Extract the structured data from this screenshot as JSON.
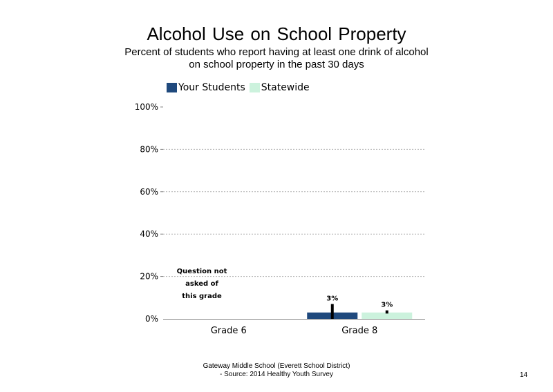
{
  "slide": {
    "title": "Alcohol Use on School  Property",
    "subtitle": "Percent of students  who report having at least one drink of alcohol on school property in the past 30 days",
    "footer_line1": "Gateway Middle  School  (Everett School District)",
    "footer_line2": "- Source: 2014 Healthy  Youth Survey",
    "page_number": "14"
  },
  "legend": {
    "items": [
      {
        "label": "Your Students",
        "color": "#1f497d"
      },
      {
        "label": "Statewide",
        "color": "#ccf2dd"
      }
    ]
  },
  "chart_data": {
    "type": "bar",
    "categories": [
      "Grade 6",
      "Grade 8"
    ],
    "series": [
      {
        "name": "Your Students",
        "color": "#1f497d",
        "values": [
          null,
          3
        ],
        "labels": [
          "",
          "3%"
        ],
        "error": [
          null,
          [
            0,
            7
          ]
        ]
      },
      {
        "name": "Statewide",
        "color": "#ccf2dd",
        "values": [
          null,
          3
        ],
        "labels": [
          "",
          "3%"
        ],
        "error": [
          null,
          [
            2.5,
            4
          ]
        ]
      }
    ],
    "ylim": [
      0,
      100
    ],
    "yticks": [
      "0%",
      "20%",
      "40%",
      "60%",
      "80%",
      "100%"
    ],
    "ytick_values": [
      0,
      20,
      40,
      60,
      80,
      100
    ],
    "grid": true,
    "annotations": [
      {
        "category": "Grade 6",
        "lines": [
          "Question not",
          "asked of",
          "this grade"
        ]
      }
    ]
  }
}
